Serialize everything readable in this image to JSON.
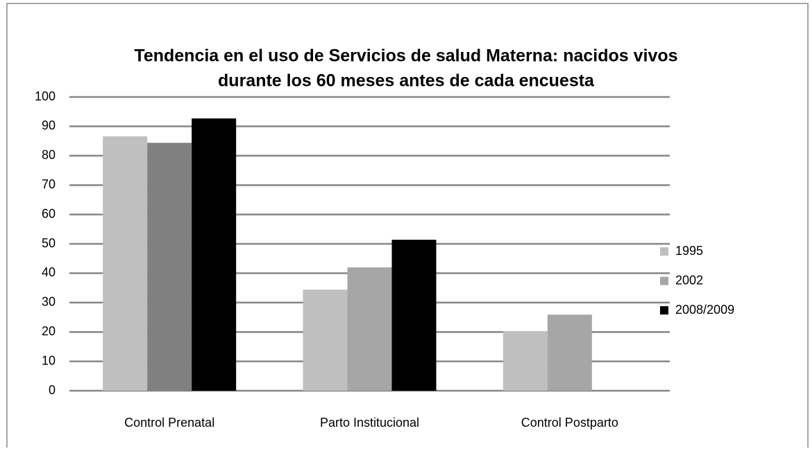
{
  "chart_data": {
    "type": "bar",
    "title": [
      "Tendencia en el uso de Servicios de salud Materna: nacidos vivos",
      "durante los 60 meses antes de cada encuesta"
    ],
    "categories": [
      "Control Prenatal",
      "Parto Institucional",
      "Control Postparto"
    ],
    "series": [
      {
        "name": "1995",
        "color": "#bfbfbf",
        "values": [
          86.6,
          34.4,
          20.3
        ]
      },
      {
        "name": "2002",
        "color": "#a6a6a6",
        "colors": [
          "#808080",
          "#a6a6a6",
          "#a6a6a6"
        ],
        "values": [
          84.4,
          42.0,
          25.9
        ]
      },
      {
        "name": "2008/2009",
        "color": "#000000",
        "values": [
          92.7,
          51.4,
          null
        ]
      }
    ],
    "ylim": [
      0,
      100
    ],
    "yticks": [
      0,
      10,
      20,
      30,
      40,
      50,
      60,
      70,
      80,
      90,
      100
    ],
    "grid": true,
    "legend": "right"
  }
}
